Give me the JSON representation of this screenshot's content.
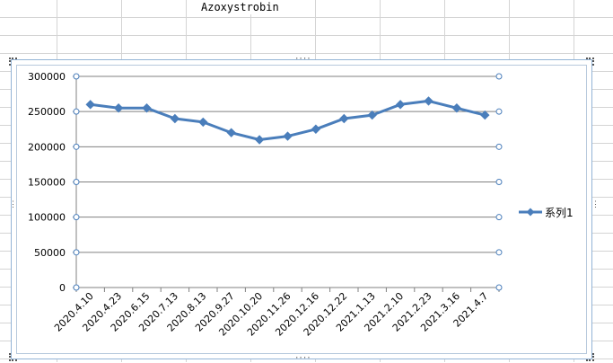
{
  "sheet": {
    "title_cell": "Azoxystrobin"
  },
  "chart_data": {
    "type": "line",
    "title": "",
    "xlabel": "",
    "ylabel": "",
    "categories": [
      "2020.4.10",
      "2020.4.23",
      "2020.6.15",
      "2020.7.13",
      "2020.8.13",
      "2020.9.27",
      "2020.10.20",
      "2020.11.26",
      "2020.12.16",
      "2020.12.22",
      "2021.1.13",
      "2021.2.10",
      "2021.2.23",
      "2021.3.16",
      "2021.4.7"
    ],
    "series": [
      {
        "name": "系列1",
        "values": [
          260000,
          255000,
          255000,
          240000,
          235000,
          220000,
          210000,
          215000,
          225000,
          240000,
          245000,
          260000,
          265000,
          255000,
          245000
        ],
        "color": "#4a7ebb",
        "marker": "diamond"
      }
    ],
    "ylim": [
      0,
      300000
    ],
    "yticks": [
      0,
      50000,
      100000,
      150000,
      200000,
      250000,
      300000
    ],
    "ytick_labels": [
      "0",
      "50000",
      "100000",
      "150000",
      "200000",
      "250000",
      "300000"
    ],
    "grid": true,
    "legend_position": "right",
    "gridline_color": "#808080"
  }
}
